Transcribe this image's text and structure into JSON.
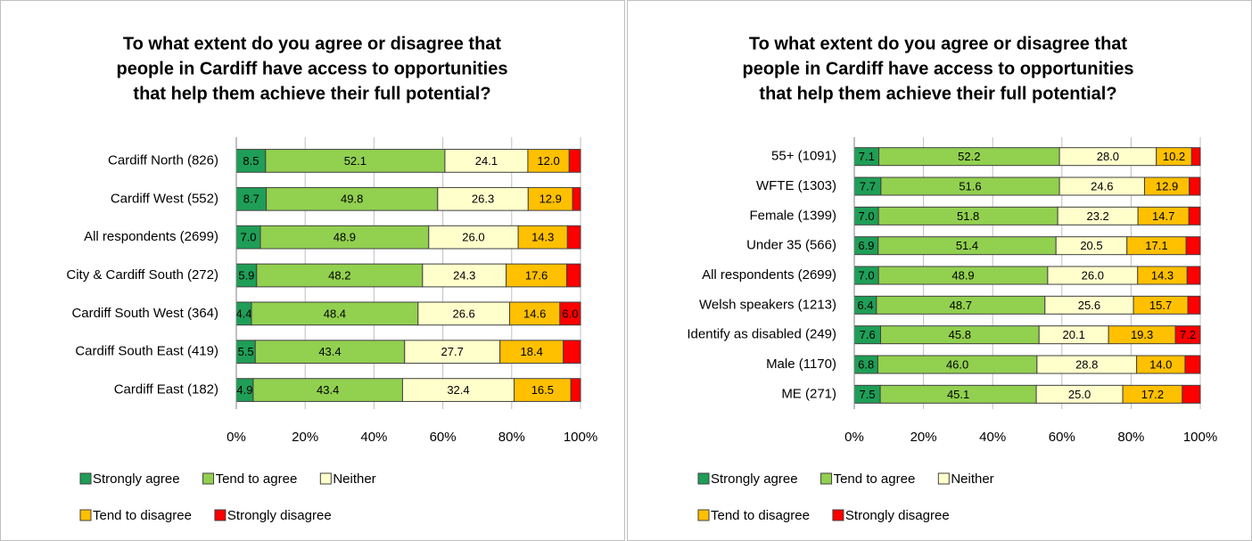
{
  "chart_data": [
    {
      "type": "stacked-bar-horizontal",
      "title": [
        "To what extent do you agree or disagree that",
        "people in Cardiff have access to opportunities",
        "that help them achieve their full potential?"
      ],
      "categories": [
        "Cardiff North (826)",
        "Cardiff West (552)",
        "All respondents (2699)",
        "City & Cardiff South (272)",
        "Cardiff South West (364)",
        "Cardiff South East (419)",
        "Cardiff East (182)"
      ],
      "series": [
        {
          "name": "Strongly agree",
          "color": "#1f9e57",
          "values": [
            8.5,
            8.7,
            7.0,
            5.9,
            4.4,
            5.5,
            4.9
          ],
          "value_labels": [
            "8.5",
            "8.7",
            "7.0",
            "5.9",
            "4.4",
            "5.5",
            "4.9"
          ]
        },
        {
          "name": "Tend to agree",
          "color": "#92d050",
          "values": [
            52.1,
            49.8,
            48.9,
            48.2,
            48.4,
            43.4,
            43.4
          ],
          "value_labels": [
            "52.1",
            "49.8",
            "48.9",
            "48.2",
            "48.4",
            "43.4",
            "43.4"
          ]
        },
        {
          "name": "Neither",
          "color": "#ffffcc",
          "values": [
            24.1,
            26.3,
            26.0,
            24.3,
            26.6,
            27.7,
            32.4
          ],
          "value_labels": [
            "24.1",
            "26.3",
            "26.0",
            "24.3",
            "26.6",
            "27.7",
            "32.4"
          ]
        },
        {
          "name": "Tend to disagree",
          "color": "#ffc000",
          "values": [
            12.0,
            12.9,
            14.3,
            17.6,
            14.6,
            18.4,
            16.5
          ],
          "value_labels": [
            "12.0",
            "12.9",
            "14.3",
            "17.6",
            "14.6",
            "18.4",
            "16.5"
          ]
        },
        {
          "name": "Strongly disagree",
          "color": "#ff0000",
          "values": [
            3.3,
            2.3,
            3.8,
            4.0,
            6.0,
            5.0,
            2.8
          ],
          "value_labels": [
            null,
            null,
            null,
            null,
            "6.0",
            null,
            null
          ]
        }
      ],
      "xlim": [
        0,
        100
      ],
      "xticks": [
        {
          "value": 0,
          "label": "0%"
        },
        {
          "value": 20,
          "label": "20%"
        },
        {
          "value": 40,
          "label": "40%"
        },
        {
          "value": 60,
          "label": "60%"
        },
        {
          "value": 80,
          "label": "80%"
        },
        {
          "value": 100,
          "label": "100%"
        }
      ],
      "grid": true,
      "legend": "bottom"
    },
    {
      "type": "stacked-bar-horizontal",
      "title": [
        "To what extent do you agree or disagree that",
        "people in Cardiff have access to opportunities",
        "that help them achieve their full potential?"
      ],
      "categories": [
        "55+ (1091)",
        "WFTE (1303)",
        "Female (1399)",
        "Under 35 (566)",
        "All respondents (2699)",
        "Welsh speakers (1213)",
        "Identify as disabled (249)",
        "Male (1170)",
        "ME (271)"
      ],
      "series": [
        {
          "name": "Strongly agree",
          "color": "#1f9e57",
          "values": [
            7.1,
            7.7,
            7.0,
            6.9,
            7.0,
            6.4,
            7.6,
            6.8,
            7.5
          ],
          "value_labels": [
            "7.1",
            "7.7",
            "7.0",
            "6.9",
            "7.0",
            "6.4",
            "7.6",
            "6.8",
            "7.5"
          ]
        },
        {
          "name": "Tend to agree",
          "color": "#92d050",
          "values": [
            52.2,
            51.6,
            51.8,
            51.4,
            48.9,
            48.7,
            45.8,
            46.0,
            45.1
          ],
          "value_labels": [
            "52.2",
            "51.6",
            "51.8",
            "51.4",
            "48.9",
            "48.7",
            "45.8",
            "46.0",
            "45.1"
          ]
        },
        {
          "name": "Neither",
          "color": "#ffffcc",
          "values": [
            28.0,
            24.6,
            23.2,
            20.5,
            26.0,
            25.6,
            20.1,
            28.8,
            25.0
          ],
          "value_labels": [
            "28.0",
            "24.6",
            "23.2",
            "20.5",
            "26.0",
            "25.6",
            "20.1",
            "28.8",
            "25.0"
          ]
        },
        {
          "name": "Tend to disagree",
          "color": "#ffc000",
          "values": [
            10.2,
            12.9,
            14.7,
            17.1,
            14.3,
            15.7,
            19.3,
            14.0,
            17.2
          ],
          "value_labels": [
            "10.2",
            "12.9",
            "14.7",
            "17.1",
            "14.3",
            "15.7",
            "19.3",
            "14.0",
            "17.2"
          ]
        },
        {
          "name": "Strongly disagree",
          "color": "#ff0000",
          "values": [
            2.5,
            3.2,
            3.3,
            4.1,
            3.8,
            3.6,
            7.2,
            4.4,
            5.2
          ],
          "value_labels": [
            null,
            null,
            null,
            null,
            null,
            null,
            "7.2",
            null,
            null
          ]
        }
      ],
      "xlim": [
        0,
        100
      ],
      "xticks": [
        {
          "value": 0,
          "label": "0%"
        },
        {
          "value": 20,
          "label": "20%"
        },
        {
          "value": 40,
          "label": "40%"
        },
        {
          "value": 60,
          "label": "60%"
        },
        {
          "value": 80,
          "label": "80%"
        },
        {
          "value": 100,
          "label": "100%"
        }
      ],
      "grid": true,
      "legend": "bottom"
    }
  ]
}
